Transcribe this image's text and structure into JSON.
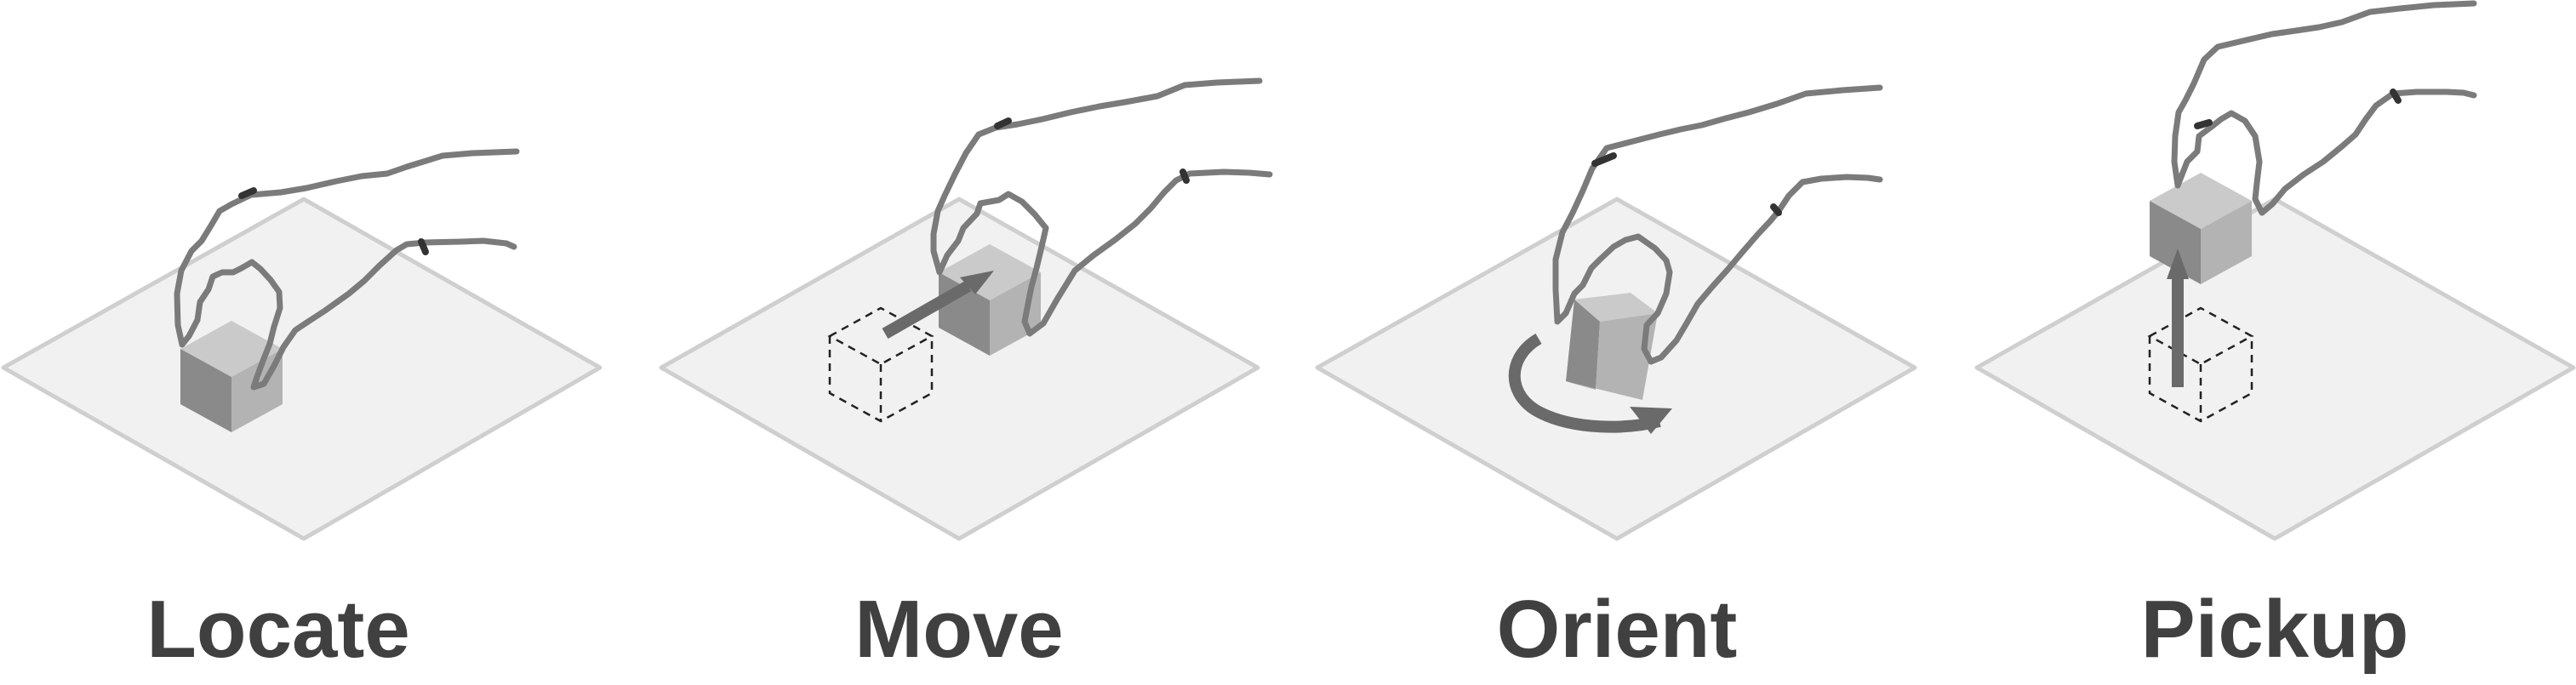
{
  "panels": [
    {
      "id": "locate",
      "label": "Locate",
      "action": "grasp-block"
    },
    {
      "id": "move",
      "label": "Move",
      "action": "slide-block"
    },
    {
      "id": "orient",
      "label": "Orient",
      "action": "rotate-block"
    },
    {
      "id": "pickup",
      "label": "Pickup",
      "action": "lift-block"
    }
  ],
  "colors": {
    "label": "#404040",
    "plane_fill": "#f1f1f1",
    "plane_stroke": "#cfcfcf",
    "cube_top": "#cacaca",
    "cube_left": "#8a8a8a",
    "cube_right": "#b3b3b3",
    "hand_stroke": "#7b7b7b",
    "arrow": "#6a6a6a",
    "ghost_outline": "#222222"
  }
}
